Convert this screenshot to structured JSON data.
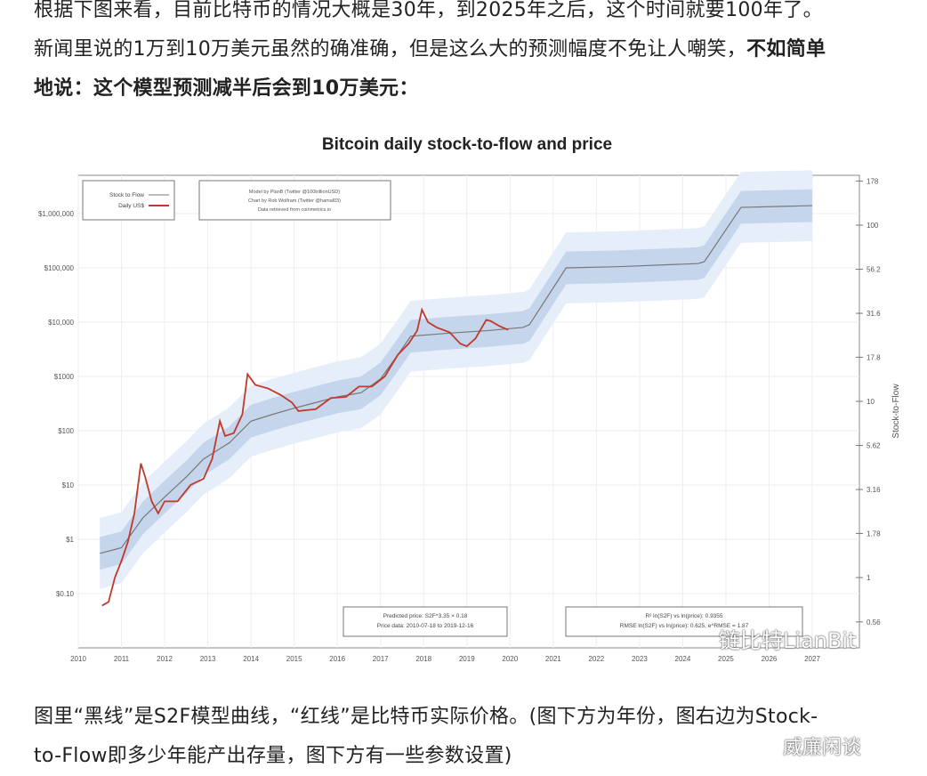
{
  "article": {
    "para1_line1": "根据下图来看，目前比特币的情况大概是30年，到2025年之后，这个时间就要100年了。",
    "para1_line2a": "新闻里说的1万到10万美元虽然的确准确，但是这么大的预测幅度不免让人嘲笑，",
    "para1_line2b": "不如简单",
    "para1_line3": "地说：这个模型预测减半后会到10万美元：",
    "para2_line1": "图里“黑线”是S2F模型曲线，“红线”是比特币实际价格。(图下方为年份，图右边为Stock-",
    "para2_line2": "to-Flow即多少年能产出存量，图下方有一些参数设置)"
  },
  "watermarks": {
    "chart": "链比特LianBit",
    "page": "威廉闲谈"
  },
  "chart_data": {
    "type": "line",
    "title": "Bitcoin daily stock-to-flow and price",
    "legend": {
      "placement": "top-left",
      "entries": [
        "Stock to Flow",
        "Daily US$"
      ]
    },
    "credits": [
      "Model by PlanB (Twitter @100trillionUSD)",
      "Chart by Rob Wolfram (Twitter @hamal03)",
      "Data retrieved from coinmetrics.io"
    ],
    "model_box": [
      "Predicted price: S2F^3.35 × 0.18",
      "Price data: 2010-07-18 to 2019-12-16"
    ],
    "stats_box": [
      "R² ln(S2F) vs ln(price): 0.9355",
      "RMSE ln(S2F) vs ln(price): 0.625, e^RMSE = 1.87"
    ],
    "x_ticks": [
      "2010",
      "2011",
      "2012",
      "2013",
      "2014",
      "2015",
      "2016",
      "2017",
      "2018",
      "2019",
      "2020",
      "2021",
      "2022",
      "2023",
      "2024",
      "2025",
      "2026",
      "2027"
    ],
    "xlim": [
      2010,
      2027.5
    ],
    "y_left": {
      "scale": "log",
      "ticks": [
        "$0.10",
        "$1",
        "$10",
        "$100",
        "$1000",
        "$10,000",
        "$100,000",
        "$1,000,000"
      ],
      "tick_values": [
        0.1,
        1,
        10,
        100,
        1000,
        10000,
        100000,
        1000000
      ],
      "ylim": [
        0.035,
        3000000
      ]
    },
    "y_right": {
      "label": "Stock-to-Flow",
      "scale": "log",
      "ticks": [
        "0.56",
        "1",
        "1.78",
        "3.16",
        "5.62",
        "10",
        "17.8",
        "31.6",
        "56.2",
        "100",
        "178"
      ]
    },
    "colors": {
      "model": "#777777",
      "price": "#c0392b",
      "band_inner": "#c5d5ec",
      "band_outer": "#e6eefa"
    },
    "series": [
      {
        "name": "Stock to Flow",
        "x": [
          2010.5,
          2011,
          2011.5,
          2012,
          2012.5,
          2012.9,
          2013.5,
          2014,
          2014.5,
          2015,
          2015.5,
          2016,
          2016.55,
          2017,
          2017.4,
          2017.7,
          2018.5,
          2019.5,
          2020.3,
          2020.45,
          2021.3,
          2022.5,
          2024.35,
          2024.5,
          2025.35,
          2027
        ],
        "values": [
          0.55,
          0.7,
          2.5,
          6,
          14,
          30,
          60,
          150,
          200,
          260,
          330,
          420,
          500,
          900,
          2500,
          5500,
          6200,
          7000,
          8000,
          9000,
          100000,
          105000,
          120000,
          130000,
          1300000,
          1400000
        ]
      },
      {
        "name": "Daily US$",
        "x": [
          2010.55,
          2010.7,
          2010.85,
          2011.0,
          2011.15,
          2011.3,
          2011.45,
          2011.55,
          2011.7,
          2011.85,
          2012.0,
          2012.3,
          2012.6,
          2012.9,
          2013.1,
          2013.28,
          2013.4,
          2013.6,
          2013.8,
          2013.92,
          2014.1,
          2014.4,
          2014.7,
          2014.95,
          2015.1,
          2015.5,
          2015.85,
          2016.2,
          2016.5,
          2016.8,
          2017.1,
          2017.4,
          2017.65,
          2017.85,
          2017.96,
          2018.1,
          2018.3,
          2018.6,
          2018.85,
          2019.0,
          2019.2,
          2019.45,
          2019.55,
          2019.75,
          2019.96
        ],
        "values": [
          0.06,
          0.07,
          0.2,
          0.4,
          0.9,
          3,
          25,
          14,
          5,
          3,
          5,
          5,
          10,
          13,
          30,
          150,
          80,
          90,
          200,
          1100,
          700,
          600,
          450,
          330,
          230,
          250,
          400,
          420,
          650,
          650,
          1000,
          2500,
          4000,
          7000,
          17000,
          10000,
          8000,
          6500,
          4000,
          3600,
          5000,
          11000,
          10500,
          8500,
          7200
        ]
      }
    ]
  }
}
